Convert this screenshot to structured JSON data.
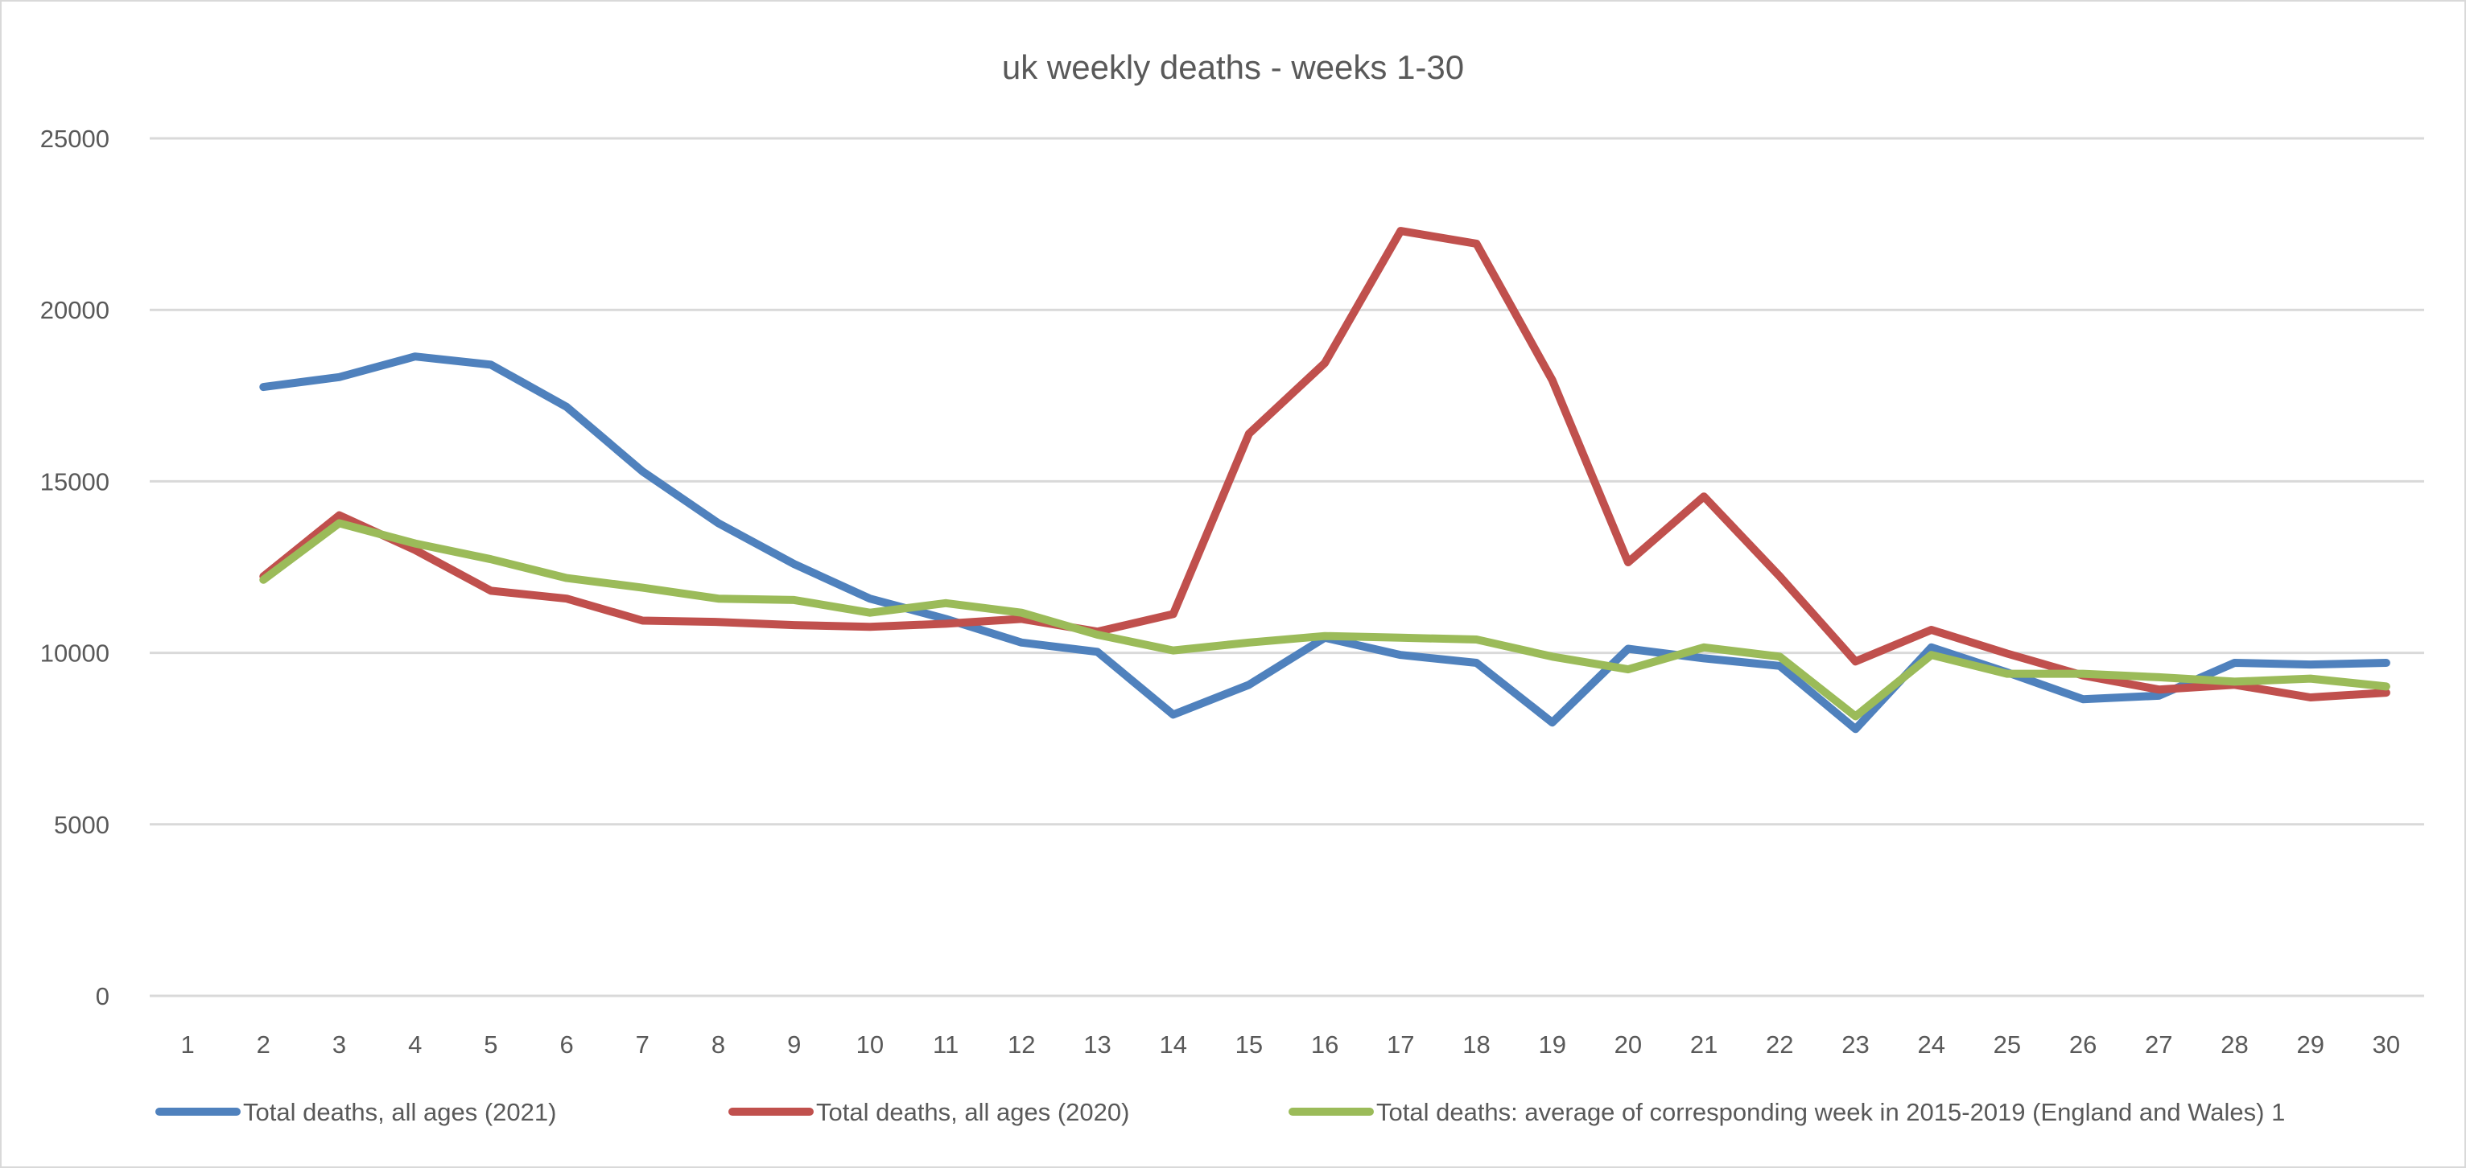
{
  "chart_data": {
    "type": "line",
    "title": "uk weekly deaths - weeks 1-30",
    "xlabel": "",
    "ylabel": "",
    "ylim": [
      0,
      25000
    ],
    "yticks": [
      0,
      5000,
      10000,
      15000,
      20000,
      25000
    ],
    "grid": true,
    "legend_position": "bottom",
    "categories": [
      "1",
      "2",
      "3",
      "4",
      "5",
      "6",
      "7",
      "8",
      "9",
      "10",
      "11",
      "12",
      "13",
      "14",
      "15",
      "16",
      "17",
      "18",
      "19",
      "20",
      "21",
      "22",
      "23",
      "24",
      "25",
      "26",
      "27",
      "28",
      "29",
      "30"
    ],
    "series": [
      {
        "name": "Total deaths, all ages (2021)",
        "color": "#4f81bd",
        "values": [
          null,
          17750,
          18040,
          18640,
          18400,
          17170,
          15290,
          13780,
          12590,
          11580,
          10990,
          10300,
          10030,
          8200,
          9070,
          10440,
          9940,
          9710,
          7970,
          10120,
          9840,
          9620,
          7780,
          10160,
          9430,
          8650,
          8750,
          9710,
          9660,
          9710
        ]
      },
      {
        "name": "Total deaths, all ages (2020)",
        "color": "#c0504d",
        "values": [
          null,
          12230,
          14010,
          13000,
          11810,
          11580,
          10940,
          10900,
          10810,
          10760,
          10850,
          10990,
          10620,
          11130,
          16390,
          18450,
          22300,
          21930,
          17950,
          12640,
          14560,
          12230,
          9750,
          10670,
          9980,
          9340,
          8930,
          9070,
          8700,
          8840
        ]
      },
      {
        "name": "Total deaths: average of corresponding week in 2015-2019 (England and Wales) 1",
        "color": "#9bbb59",
        "values": [
          null,
          12130,
          13780,
          13190,
          12730,
          12180,
          11900,
          11580,
          11540,
          11170,
          11450,
          11170,
          10530,
          10070,
          10300,
          10490,
          10440,
          10390,
          9890,
          9520,
          10160,
          9890,
          8150,
          9940,
          9390,
          9390,
          9290,
          9160,
          9250,
          9020
        ]
      }
    ]
  }
}
